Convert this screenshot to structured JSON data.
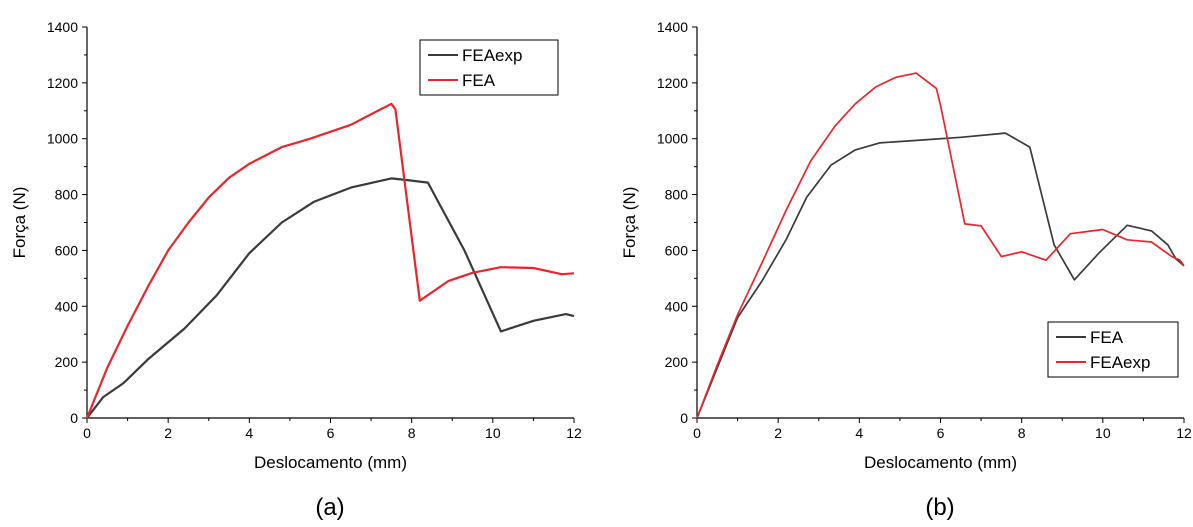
{
  "chart_data": [
    {
      "type": "line",
      "caption": "(a)",
      "xlabel": "Deslocamento (mm)",
      "ylabel": "Força (N)",
      "xlim": [
        0,
        12
      ],
      "ylim": [
        0,
        1400
      ],
      "xticks": [
        0,
        2,
        4,
        6,
        8,
        10,
        12
      ],
      "yticks": [
        0,
        200,
        400,
        600,
        800,
        1000,
        1200,
        1400
      ],
      "grid": false,
      "legend": "top-right",
      "series": [
        {
          "name": "FEAexp",
          "color": "#3a3a3a",
          "points": [
            [
              0,
              0
            ],
            [
              0.4,
              75
            ],
            [
              0.9,
              125
            ],
            [
              1.5,
              210
            ],
            [
              2.4,
              320
            ],
            [
              3.2,
              440
            ],
            [
              4.0,
              590
            ],
            [
              4.8,
              700
            ],
            [
              5.6,
              775
            ],
            [
              6.5,
              825
            ],
            [
              7.5,
              858
            ],
            [
              8.0,
              850
            ],
            [
              8.4,
              843
            ],
            [
              9.3,
              600
            ],
            [
              10.2,
              310
            ],
            [
              11.0,
              348
            ],
            [
              11.8,
              372
            ],
            [
              12.0,
              365
            ]
          ]
        },
        {
          "name": "FEA",
          "color": "#e8262b",
          "points": [
            [
              0,
              0
            ],
            [
              0.5,
              180
            ],
            [
              1.0,
              330
            ],
            [
              1.5,
              470
            ],
            [
              2.0,
              600
            ],
            [
              2.5,
              700
            ],
            [
              3.0,
              790
            ],
            [
              3.5,
              860
            ],
            [
              4.0,
              910
            ],
            [
              4.8,
              970
            ],
            [
              5.5,
              1000
            ],
            [
              6.5,
              1050
            ],
            [
              7.5,
              1125
            ],
            [
              7.6,
              1105
            ],
            [
              8.2,
              420
            ],
            [
              8.9,
              490
            ],
            [
              9.5,
              520
            ],
            [
              10.2,
              540
            ],
            [
              11.0,
              537
            ],
            [
              11.7,
              515
            ],
            [
              12.0,
              518
            ]
          ]
        }
      ]
    },
    {
      "type": "line",
      "caption": "(b)",
      "xlabel": "Deslocamento (mm)",
      "ylabel": "Força (N)",
      "xlim": [
        0,
        12
      ],
      "ylim": [
        0,
        1400
      ],
      "xticks": [
        0,
        2,
        4,
        6,
        8,
        10,
        12
      ],
      "yticks": [
        0,
        200,
        400,
        600,
        800,
        1000,
        1200,
        1400
      ],
      "grid": false,
      "legend": "bottom-right",
      "series": [
        {
          "name": "FEA",
          "color": "#3a3a3a",
          "points": [
            [
              0,
              0
            ],
            [
              0.5,
              180
            ],
            [
              1.0,
              360
            ],
            [
              1.6,
              490
            ],
            [
              2.2,
              640
            ],
            [
              2.7,
              790
            ],
            [
              3.3,
              905
            ],
            [
              3.9,
              960
            ],
            [
              4.5,
              985
            ],
            [
              5.5,
              995
            ],
            [
              6.5,
              1005
            ],
            [
              7.6,
              1020
            ],
            [
              8.2,
              970
            ],
            [
              8.8,
              620
            ],
            [
              9.3,
              495
            ],
            [
              9.9,
              590
            ],
            [
              10.6,
              690
            ],
            [
              11.2,
              670
            ],
            [
              11.6,
              620
            ],
            [
              11.8,
              570
            ],
            [
              12.0,
              545
            ]
          ]
        },
        {
          "name": "FEAexp",
          "color": "#e8262b",
          "points": [
            [
              0,
              0
            ],
            [
              0.5,
              190
            ],
            [
              1.0,
              370
            ],
            [
              1.6,
              555
            ],
            [
              2.2,
              745
            ],
            [
              2.8,
              920
            ],
            [
              3.4,
              1045
            ],
            [
              3.9,
              1125
            ],
            [
              4.4,
              1185
            ],
            [
              4.9,
              1220
            ],
            [
              5.4,
              1235
            ],
            [
              5.9,
              1180
            ],
            [
              6.0,
              1120
            ],
            [
              6.6,
              695
            ],
            [
              7.0,
              688
            ],
            [
              7.5,
              578
            ],
            [
              8.0,
              595
            ],
            [
              8.6,
              565
            ],
            [
              9.2,
              660
            ],
            [
              10.0,
              675
            ],
            [
              10.6,
              638
            ],
            [
              11.2,
              630
            ],
            [
              11.7,
              578
            ],
            [
              11.9,
              565
            ],
            [
              12.0,
              545
            ]
          ]
        }
      ]
    }
  ]
}
